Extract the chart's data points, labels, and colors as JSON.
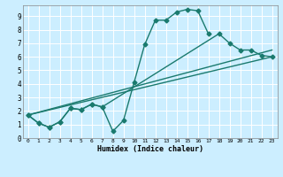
{
  "title": "",
  "xlabel": "Humidex (Indice chaleur)",
  "bg_color": "#cceeff",
  "grid_color": "#ffffff",
  "line_color": "#1a7a6e",
  "xlim": [
    -0.5,
    23.5
  ],
  "ylim": [
    0,
    9.8
  ],
  "xticks": [
    0,
    1,
    2,
    3,
    4,
    5,
    6,
    7,
    8,
    9,
    10,
    11,
    12,
    13,
    14,
    15,
    16,
    17,
    18,
    19,
    20,
    21,
    22,
    23
  ],
  "yticks": [
    0,
    1,
    2,
    3,
    4,
    5,
    6,
    7,
    8,
    9
  ],
  "lines": [
    {
      "x": [
        0,
        1,
        2,
        3,
        4,
        5,
        6,
        7,
        8,
        9,
        10,
        11,
        12,
        13,
        14,
        15,
        16,
        17
      ],
      "y": [
        1.7,
        1.1,
        0.8,
        1.2,
        2.2,
        2.1,
        2.5,
        2.3,
        0.5,
        1.3,
        4.1,
        6.9,
        8.7,
        8.7,
        9.3,
        9.5,
        9.4,
        7.7
      ],
      "marker": "D",
      "markersize": 2.5,
      "linewidth": 1.0
    },
    {
      "x": [
        0,
        1,
        2,
        3,
        4,
        5,
        6,
        7,
        18,
        19,
        20,
        21,
        22,
        23
      ],
      "y": [
        1.7,
        1.1,
        0.8,
        1.2,
        2.2,
        2.1,
        2.5,
        2.3,
        7.7,
        7.0,
        6.5,
        6.5,
        6.1,
        6.0
      ],
      "marker": "D",
      "markersize": 2.5,
      "linewidth": 1.0
    },
    {
      "x": [
        0,
        23
      ],
      "y": [
        1.7,
        6.0
      ],
      "marker": null,
      "markersize": 0,
      "linewidth": 1.0
    },
    {
      "x": [
        0,
        23
      ],
      "y": [
        1.7,
        6.5
      ],
      "marker": null,
      "markersize": 0,
      "linewidth": 1.0
    }
  ]
}
